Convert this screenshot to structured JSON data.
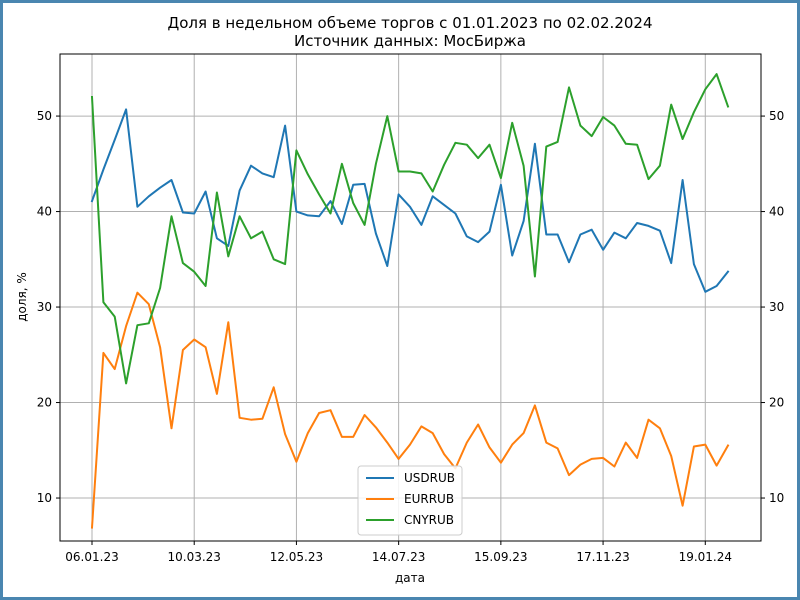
{
  "chart_data": {
    "type": "line",
    "title": "Доля в недельном объеме торгов с 01.01.2023 по 02.02.2024",
    "subtitle": "Источник данных: МосБиржа",
    "xlabel": "дата",
    "ylabel": "доля, %",
    "ylim": [
      5.5,
      56.5
    ],
    "yticks": [
      10,
      20,
      30,
      40,
      50
    ],
    "xtick_labels": [
      {
        "index": 0,
        "label": "06.01.23"
      },
      {
        "index": 9,
        "label": "10.03.23"
      },
      {
        "index": 18,
        "label": "12.05.23"
      },
      {
        "index": 27,
        "label": "14.07.23"
      },
      {
        "index": 36,
        "label": "15.09.23"
      },
      {
        "index": 45,
        "label": "17.11.23"
      },
      {
        "index": 54,
        "label": "19.01.24"
      }
    ],
    "grid": true,
    "legend_position": "bottom-center",
    "series": [
      {
        "name": "USDRUB",
        "color": "#1f77b4",
        "values": [
          41.1,
          44.4,
          47.5,
          50.7,
          40.5,
          41.6,
          42.5,
          43.3,
          39.9,
          39.8,
          42.1,
          37.2,
          36.4,
          42.2,
          44.8,
          44.0,
          43.6,
          49.0,
          40.0,
          39.6,
          39.5,
          41.1,
          38.7,
          42.8,
          42.9,
          37.7,
          34.3,
          41.8,
          40.5,
          38.6,
          41.6,
          40.7,
          39.8,
          37.4,
          36.8,
          37.9,
          42.8,
          35.4,
          39.0,
          47.1,
          37.6,
          37.6,
          34.7,
          37.6,
          38.1,
          36.0,
          37.8,
          37.2,
          38.8,
          38.5,
          38.0,
          34.6,
          43.3,
          34.5,
          31.6,
          32.2,
          33.7
        ]
      },
      {
        "name": "EURRUB",
        "color": "#ff7f0e",
        "values": [
          6.9,
          25.2,
          23.5,
          28.0,
          31.5,
          30.3,
          25.8,
          17.3,
          25.5,
          26.6,
          25.8,
          20.9,
          28.4,
          18.4,
          18.2,
          18.3,
          21.6,
          16.7,
          13.8,
          16.8,
          18.9,
          19.2,
          16.4,
          16.4,
          18.7,
          17.4,
          15.8,
          14.1,
          15.6,
          17.5,
          16.8,
          14.6,
          13.1,
          15.8,
          17.7,
          15.3,
          13.7,
          15.6,
          16.8,
          19.7,
          15.8,
          15.2,
          12.4,
          13.5,
          14.1,
          14.2,
          13.3,
          15.8,
          14.2,
          18.2,
          17.3,
          14.4,
          9.2,
          15.4,
          15.6,
          13.4,
          15.5
        ]
      },
      {
        "name": "CNYRUB",
        "color": "#2ca02c",
        "values": [
          52.0,
          30.5,
          29.0,
          22.0,
          28.1,
          28.3,
          32.0,
          39.5,
          34.6,
          33.7,
          32.2,
          42.0,
          35.3,
          39.5,
          37.2,
          37.9,
          35.0,
          34.5,
          46.4,
          43.9,
          41.8,
          39.8,
          45.0,
          40.9,
          38.6,
          45.0,
          50.0,
          44.2,
          44.2,
          44.0,
          42.1,
          44.9,
          47.2,
          47.0,
          45.6,
          47.0,
          43.5,
          49.3,
          44.8,
          33.2,
          46.8,
          47.3,
          53.0,
          49.0,
          47.9,
          49.9,
          49.0,
          47.1,
          47.0,
          43.4,
          44.8,
          51.2,
          47.6,
          50.4,
          52.8,
          54.4,
          51.0
        ]
      }
    ]
  }
}
